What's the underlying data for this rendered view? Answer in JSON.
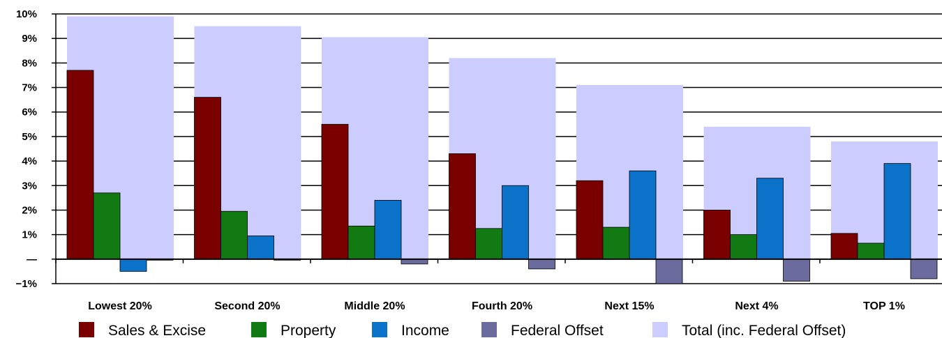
{
  "chart_data": {
    "type": "bar",
    "title": "",
    "xlabel": "",
    "ylabel": "",
    "ylim": [
      -1,
      10
    ],
    "yticks": [
      {
        "value": 10,
        "label": "10%"
      },
      {
        "value": 9,
        "label": "9%"
      },
      {
        "value": 8,
        "label": "8%"
      },
      {
        "value": 7,
        "label": "7%"
      },
      {
        "value": 6,
        "label": "6%"
      },
      {
        "value": 5,
        "label": "5%"
      },
      {
        "value": 4,
        "label": "4%"
      },
      {
        "value": 3,
        "label": "3%"
      },
      {
        "value": 2,
        "label": "2%"
      },
      {
        "value": 1,
        "label": "1%"
      },
      {
        "value": 0,
        "label": "—"
      },
      {
        "value": -1,
        "label": "−1%"
      }
    ],
    "grid": true,
    "legend_position": "bottom",
    "categories": [
      "Lowest 20%",
      "Second 20%",
      "Middle 20%",
      "Fourth 20%",
      "Next 15%",
      "Next 4%",
      "TOP 1%"
    ],
    "series": [
      {
        "name": "Sales & Excise",
        "color": "#7a0000",
        "values": [
          7.7,
          6.6,
          5.5,
          4.3,
          3.2,
          2.0,
          1.05
        ]
      },
      {
        "name": "Property",
        "color": "#127a12",
        "values": [
          2.7,
          1.95,
          1.35,
          1.25,
          1.3,
          1.0,
          0.65
        ]
      },
      {
        "name": "Income",
        "color": "#0a72c9",
        "values": [
          -0.5,
          0.95,
          2.4,
          3.0,
          3.6,
          3.3,
          3.9
        ]
      },
      {
        "name": "Federal Offset",
        "color": "#6b6b9e",
        "values": [
          0,
          -0.02,
          -0.2,
          -0.4,
          -1.0,
          -0.9,
          -0.8
        ]
      },
      {
        "name": "Total (inc. Federal Offset)",
        "color": "#ccccff",
        "values": [
          9.9,
          9.5,
          9.05,
          8.2,
          7.1,
          5.4,
          4.8
        ]
      }
    ]
  }
}
